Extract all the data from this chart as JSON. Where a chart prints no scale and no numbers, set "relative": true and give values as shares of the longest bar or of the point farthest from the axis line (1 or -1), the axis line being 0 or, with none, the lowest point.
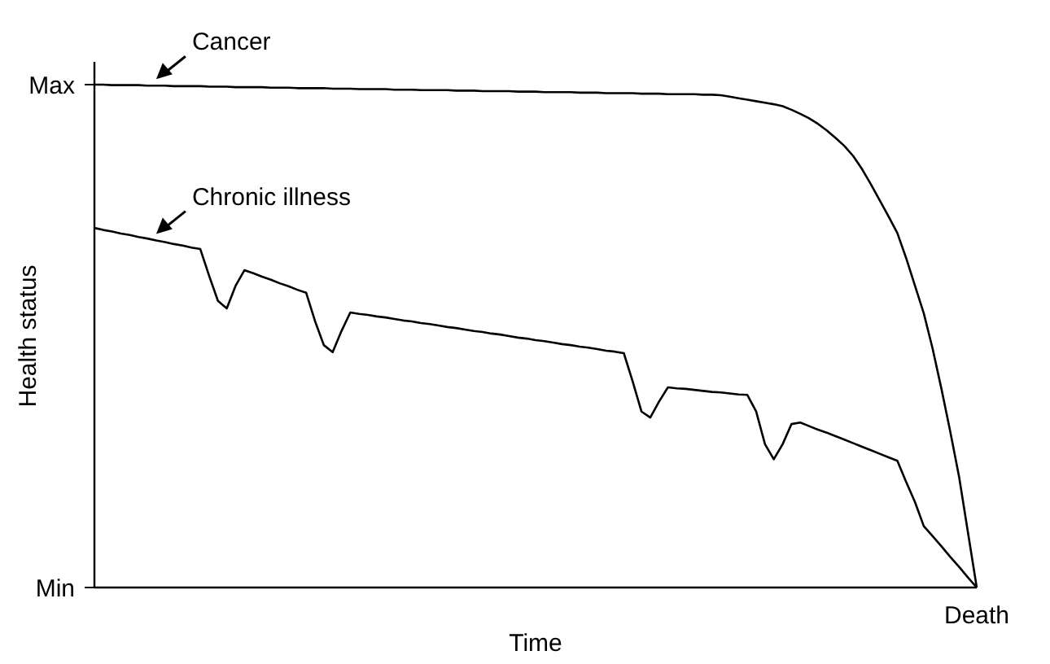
{
  "chart_data": {
    "type": "line",
    "xlabel": "Time",
    "ylabel": "Health status",
    "relative": true,
    "annotations": [
      "Max",
      "Min",
      "Death"
    ],
    "categories": [
      null,
      null,
      null,
      null,
      null,
      null,
      null,
      null,
      null,
      null,
      null,
      null,
      null,
      null,
      null,
      null,
      null,
      null,
      null,
      null,
      null,
      null,
      null,
      null,
      null,
      null,
      null,
      null,
      null,
      null,
      null,
      null,
      null,
      null,
      null,
      null,
      null,
      null,
      null,
      null,
      null,
      null,
      null,
      null,
      null,
      null,
      null,
      null,
      null,
      null,
      null,
      null,
      null,
      null,
      null,
      null,
      null,
      null,
      null,
      null,
      null,
      null,
      null,
      null,
      null,
      null,
      null,
      null,
      null,
      null,
      null,
      null,
      null,
      null,
      null,
      null,
      null,
      null,
      null,
      null,
      null,
      null,
      null,
      null,
      null,
      null,
      null,
      null,
      null,
      null,
      null,
      null,
      null,
      null,
      null,
      null,
      null,
      null,
      null,
      null,
      null
    ],
    "series": [
      {
        "name": "Cancer",
        "color": "#000000",
        "values": [
          1,
          1,
          0.999,
          0.999,
          0.999,
          0.999,
          0.998,
          0.998,
          0.998,
          0.997,
          0.997,
          0.997,
          0.997,
          0.996,
          0.996,
          0.996,
          0.995,
          0.995,
          0.995,
          0.995,
          0.994,
          0.994,
          0.994,
          0.993,
          0.993,
          0.993,
          0.993,
          0.992,
          0.992,
          0.992,
          0.991,
          0.991,
          0.991,
          0.991,
          0.99,
          0.99,
          0.99,
          0.989,
          0.989,
          0.989,
          0.989,
          0.988,
          0.988,
          0.988,
          0.987,
          0.987,
          0.987,
          0.987,
          0.986,
          0.986,
          0.986,
          0.985,
          0.985,
          0.985,
          0.985,
          0.984,
          0.984,
          0.984,
          0.983,
          0.983,
          0.983,
          0.983,
          0.982,
          0.982,
          0.982,
          0.981,
          0.981,
          0.981,
          0.981,
          0.98,
          0.98,
          0.979,
          0.976,
          0.973,
          0.97,
          0.967,
          0.964,
          0.961,
          0.957,
          0.95,
          0.942,
          0.933,
          0.922,
          0.909,
          0.894,
          0.878,
          0.858,
          0.832,
          0.802,
          0.77,
          0.738,
          0.705,
          0.655,
          0.6,
          0.545,
          0.475,
          0.395,
          0.31,
          0.22,
          0.11,
          0
        ]
      },
      {
        "name": "Chronic illness",
        "color": "#000000",
        "values": [
          0.715,
          0.711,
          0.708,
          0.704,
          0.701,
          0.697,
          0.694,
          0.69,
          0.687,
          0.683,
          0.68,
          0.676,
          0.673,
          0.62,
          0.57,
          0.555,
          0.6,
          0.631,
          0.625,
          0.618,
          0.612,
          0.605,
          0.599,
          0.592,
          0.586,
          0.53,
          0.482,
          0.468,
          0.51,
          0.547,
          0.544,
          0.542,
          0.539,
          0.537,
          0.534,
          0.531,
          0.529,
          0.526,
          0.524,
          0.521,
          0.518,
          0.516,
          0.513,
          0.51,
          0.508,
          0.505,
          0.503,
          0.5,
          0.497,
          0.495,
          0.492,
          0.49,
          0.487,
          0.484,
          0.482,
          0.479,
          0.477,
          0.474,
          0.471,
          0.469,
          0.466,
          0.41,
          0.35,
          0.338,
          0.37,
          0.398,
          0.396,
          0.395,
          0.393,
          0.391,
          0.389,
          0.388,
          0.386,
          0.384,
          0.383,
          0.35,
          0.285,
          0.255,
          0.285,
          0.325,
          0.328,
          0.321,
          0.314,
          0.308,
          0.301,
          0.294,
          0.287,
          0.28,
          0.273,
          0.266,
          0.259,
          0.252,
          0.21,
          0.17,
          0.122,
          0.102,
          0.082,
          0.061,
          0.041,
          0.02,
          0
        ]
      }
    ],
    "marker": "none",
    "line_style": "solid"
  }
}
